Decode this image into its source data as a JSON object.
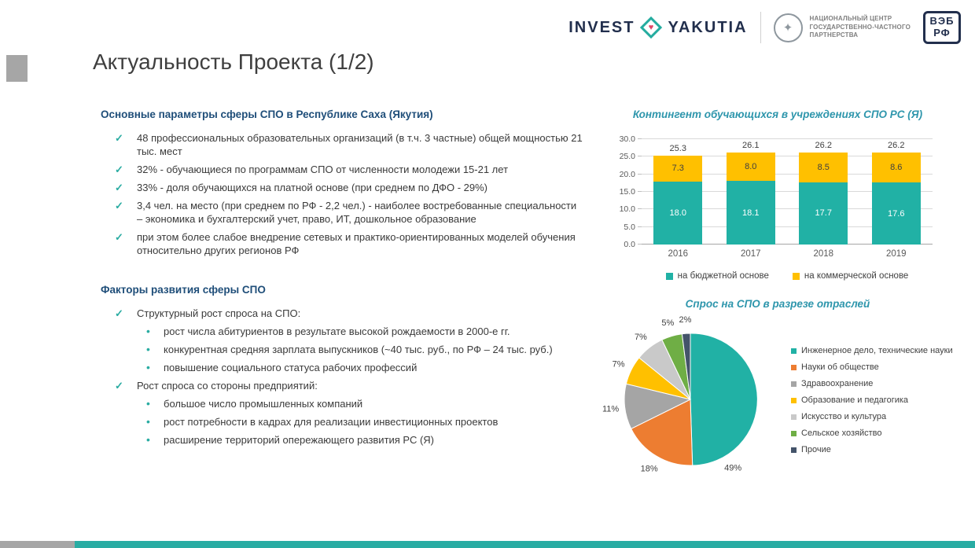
{
  "header": {
    "invest_yakutia": {
      "word1": "INVEST",
      "word2": "YAKUTIA"
    },
    "ncppp_lines": [
      "НАЦИОНАЛЬНЫЙ ЦЕНТР",
      "ГОСУДАРСТВЕННО-ЧАСТНОГО",
      "ПАРТНЕРСТВА"
    ],
    "veb": {
      "line1": "ВЭБ",
      "line2": "РФ"
    }
  },
  "title": "Актуальность Проекта (1/2)",
  "sections": {
    "params": {
      "heading": "Основные параметры сферы СПО в Республике Саха (Якутия)",
      "items": [
        "48 профессиональных образовательных организаций (в т.ч. 3 частные) общей мощностью 21 тыс. мест",
        "32% - обучающиеся по программам СПО от численности молодежи 15-21 лет",
        "33% - доля обучающихся на платной основе (при среднем по ДФО - 29%)",
        "3,4 чел. на место (при среднем по РФ - 2,2 чел.) - наиболее востребованные специальности – экономика и бухгалтерский учет, право, ИТ, дошкольное образование",
        "при этом более слабое внедрение сетевых и практико-ориентированных моделей обучения относительно других регионов РФ"
      ]
    },
    "factors": {
      "heading": "Факторы развития сферы СПО",
      "items": [
        {
          "text": "Структурный рост спроса на СПО:",
          "sub": [
            "рост числа абитуриентов в результате высокой рождаемости в 2000-е гг.",
            "конкурентная средняя зарплата выпускников (~40 тыс. руб., по РФ – 24 тыс. руб.)",
            "повышение социального статуса рабочих профессий"
          ]
        },
        {
          "text": "Рост спроса со стороны предприятий:",
          "sub": [
            "большое число промышленных компаний",
            "рост потребности в кадрах для реализации инвестиционных проектов",
            "расширение территорий опережающего развития РС (Я)"
          ]
        }
      ]
    }
  },
  "chart_data": [
    {
      "type": "bar",
      "stacked": true,
      "title": "Контингент обучающихся в учреждениях СПО РС (Я)",
      "categories": [
        "2016",
        "2017",
        "2018",
        "2019"
      ],
      "series": [
        {
          "name": "на бюджетной основе",
          "color": "#21B1A5",
          "values": [
            18.0,
            18.1,
            17.7,
            17.6
          ]
        },
        {
          "name": "на коммерческой основе",
          "color": "#FFC000",
          "values": [
            7.3,
            8.0,
            8.5,
            8.6
          ]
        }
      ],
      "totals": [
        25.3,
        26.1,
        26.2,
        26.2
      ],
      "ylim": [
        0,
        30
      ],
      "ytick_step": 5,
      "grid": true,
      "legend_position": "bottom"
    },
    {
      "type": "pie",
      "title": "Спрос на СПО в разрезе отраслей",
      "value_suffix": "%",
      "legend_position": "right",
      "slices": [
        {
          "label": "Инженерное дело, технические науки",
          "value": 49,
          "color": "#21B1A5"
        },
        {
          "label": "Науки об обществе",
          "value": 18,
          "color": "#ED7D31"
        },
        {
          "label": "Здравоохранение",
          "value": 11,
          "color": "#A5A5A5"
        },
        {
          "label": "Образование и педагогика",
          "value": 7,
          "color": "#FFC000"
        },
        {
          "label": "Искусство и культура",
          "value": 7,
          "color": "#C9C9C9"
        },
        {
          "label": "Сельское хозяйство",
          "value": 5,
          "color": "#6FAE45"
        },
        {
          "label": "Прочие",
          "value": 2,
          "color": "#44546A"
        }
      ]
    }
  ],
  "footer": {
    "accent_color": "#29ACA3",
    "gray_color": "#A6A6A6"
  }
}
